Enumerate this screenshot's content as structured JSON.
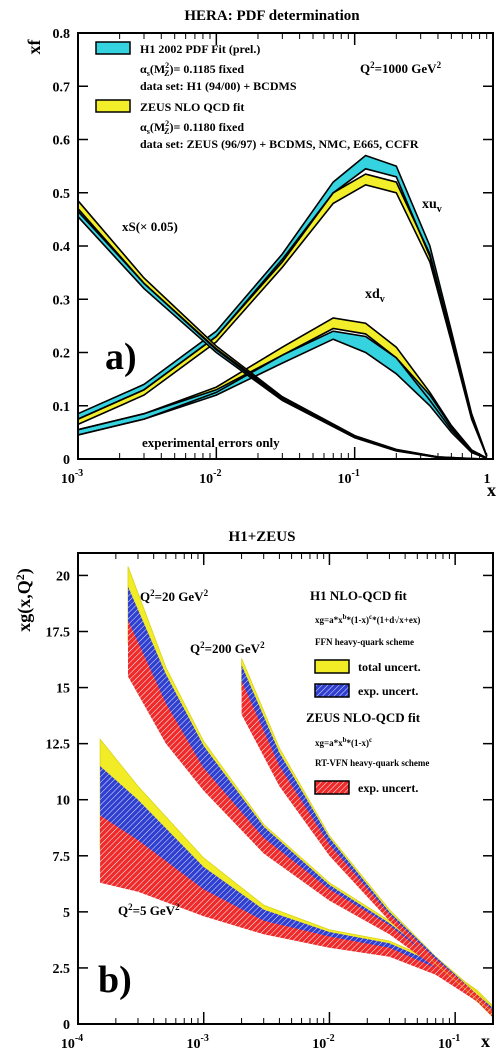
{
  "chart_data": [
    {
      "type": "line",
      "title": "HERA: PDF determination",
      "ylabel": "xf",
      "xlabel": "x",
      "xscale": "log",
      "xlim": [
        0.001,
        1
      ],
      "ylim": [
        0,
        0.8
      ],
      "x_tick_labels": [
        "10",
        "10",
        "10",
        "1"
      ],
      "x_tick_exponents": [
        "-3",
        "-2",
        "-1",
        ""
      ],
      "y_tick_labels": [
        "0",
        "0.1",
        "0.2",
        "0.3",
        "0.4",
        "0.5",
        "0.6",
        "0.7",
        "0.8"
      ],
      "panel_label": "a)",
      "q2_label": "Q",
      "q2_value": "=1000 GeV",
      "legend": {
        "h1_fit": "H1 2002 PDF Fit (prel.)",
        "h1_alpha": "= 0.1185 fixed",
        "h1_dataset": "data set: H1 (94/00) + BCDMS",
        "zeus_fit": "ZEUS NLO QCD fit",
        "zeus_alpha": "= 0.1180 fixed",
        "zeus_dataset": "data set: ZEUS (96/97) + BCDMS, NMC, E665, CCFR",
        "alpha_symbol": "α",
        "alpha_sub": "s",
        "alpha_arg": "(M",
        "alpha_arg_sub": "Z",
        "alpha_arg_sup": "2",
        "alpha_arg_close": ")"
      },
      "curve_labels": {
        "xuv": "xu",
        "xuv_sub": "v",
        "xdv": "xd",
        "xdv_sub": "v",
        "xs": "xS(× 0.05)"
      },
      "annotation": "experimental errors only",
      "colors": {
        "h1": "#35d2e0",
        "zeus": "#f3ee2a"
      },
      "series": [
        {
          "name": "xu",
          "x": [
            0.001,
            0.003,
            0.01,
            0.03,
            0.07,
            0.12,
            0.2,
            0.35,
            0.5,
            0.7,
            0.9
          ],
          "h1": [
            [
              0.075,
              0.085
            ],
            [
              0.13,
              0.14
            ],
            [
              0.23,
              0.24
            ],
            [
              0.37,
              0.385
            ],
            [
              0.5,
              0.52
            ],
            [
              0.545,
              0.57
            ],
            [
              0.53,
              0.55
            ],
            [
              0.38,
              0.4
            ],
            [
              0.23,
              0.24
            ],
            [
              0.08,
              0.085
            ],
            [
              0.005,
              0.006
            ]
          ],
          "zeus": [
            [
              0.065,
              0.075
            ],
            [
              0.12,
              0.13
            ],
            [
              0.22,
              0.23
            ],
            [
              0.36,
              0.375
            ],
            [
              0.48,
              0.5
            ],
            [
              0.515,
              0.535
            ],
            [
              0.5,
              0.52
            ],
            [
              0.37,
              0.385
            ],
            [
              0.22,
              0.23
            ],
            [
              0.075,
              0.082
            ],
            [
              0.005,
              0.006
            ]
          ]
        },
        {
          "name": "xd",
          "x": [
            0.001,
            0.003,
            0.01,
            0.03,
            0.07,
            0.12,
            0.2,
            0.35,
            0.5,
            0.7,
            0.9
          ],
          "h1": [
            [
              0.045,
              0.055
            ],
            [
              0.075,
              0.085
            ],
            [
              0.12,
              0.13
            ],
            [
              0.18,
              0.195
            ],
            [
              0.225,
              0.24
            ],
            [
              0.2,
              0.23
            ],
            [
              0.16,
              0.19
            ],
            [
              0.1,
              0.12
            ],
            [
              0.05,
              0.06
            ],
            [
              0.012,
              0.015
            ],
            [
              0.001,
              0.002
            ]
          ],
          "zeus": [
            [
              0.045,
              0.055
            ],
            [
              0.075,
              0.085
            ],
            [
              0.125,
              0.135
            ],
            [
              0.195,
              0.21
            ],
            [
              0.245,
              0.265
            ],
            [
              0.235,
              0.255
            ],
            [
              0.19,
              0.21
            ],
            [
              0.11,
              0.125
            ],
            [
              0.055,
              0.063
            ],
            [
              0.014,
              0.017
            ],
            [
              0.001,
              0.002
            ]
          ]
        },
        {
          "name": "xS",
          "x": [
            0.001,
            0.003,
            0.01,
            0.03,
            0.1,
            0.2,
            0.4,
            0.7,
            0.9
          ],
          "h1": [
            [
              0.455,
              0.47
            ],
            [
              0.32,
              0.33
            ],
            [
              0.2,
              0.207
            ],
            [
              0.11,
              0.115
            ],
            [
              0.04,
              0.043
            ],
            [
              0.015,
              0.017
            ],
            [
              0.003,
              0.004
            ],
            [
              0.0,
              0.001
            ],
            [
              0.0,
              0.0
            ]
          ],
          "zeus": [
            [
              0.465,
              0.485
            ],
            [
              0.33,
              0.34
            ],
            [
              0.205,
              0.212
            ],
            [
              0.112,
              0.117
            ],
            [
              0.041,
              0.044
            ],
            [
              0.016,
              0.018
            ],
            [
              0.003,
              0.004
            ],
            [
              0.0,
              0.001
            ],
            [
              0.0,
              0.0
            ]
          ]
        }
      ]
    },
    {
      "type": "area",
      "title": "H1+ZEUS",
      "ylabel": "xg(x,Q",
      "ylabel_sup": "2",
      "ylabel_close": ")",
      "xlabel": "x",
      "xscale": "log",
      "xlim": [
        0.0001,
        0.2
      ],
      "ylim": [
        0,
        21
      ],
      "x_tick_labels": [
        "10",
        "10",
        "10",
        "10"
      ],
      "x_tick_exponents": [
        "-4",
        "-3",
        "-2",
        "-1"
      ],
      "y_tick_labels": [
        "0",
        "2.5",
        "5",
        "7.5",
        "10",
        "12.5",
        "15",
        "17.5",
        "20"
      ],
      "panel_label": "b)",
      "q2_labels": [
        {
          "text": "Q",
          "sup": "2",
          "value": "=20 GeV",
          "unit_sup": "2"
        },
        {
          "text": "Q",
          "sup": "2",
          "value": "=200 GeV",
          "unit_sup": "2"
        },
        {
          "text": "Q",
          "sup": "2",
          "value": "=5 GeV",
          "unit_sup": "2"
        }
      ],
      "legend": {
        "h1_title": "H1 NLO-QCD fit",
        "h1_param": "xg=a*x",
        "h1_param_sup1": "b",
        "h1_param_mid": "*(1-x)",
        "h1_param_sup2": "c",
        "h1_param_end": "*(1+d√x+ex)",
        "h1_scheme": "FFN heavy-quark scheme",
        "total_uncert": "total uncert.",
        "exp_uncert": "exp.  uncert.",
        "zeus_title": "ZEUS NLO-QCD fit",
        "zeus_param": "xg=a*x",
        "zeus_param_sup1": "b",
        "zeus_param_mid": "*(1-x)",
        "zeus_param_sup2": "c",
        "zeus_scheme": "RT-VFN heavy-quark scheme",
        "zeus_exp_uncert": "exp.  uncert."
      },
      "colors": {
        "total": "#f2ec26",
        "exp_h1": "#2f3fd0",
        "exp_zeus": "#ee2a2a"
      },
      "series": [
        {
          "name": "Q2=5",
          "x": [
            0.00015,
            0.0003,
            0.001,
            0.003,
            0.01,
            0.03,
            0.07,
            0.15,
            0.2
          ],
          "total": [
            [
              7.8,
              12.7
            ],
            [
              7.0,
              10.6
            ],
            [
              5.3,
              7.4
            ],
            [
              4.2,
              5.3
            ],
            [
              3.6,
              4.2
            ],
            [
              3.1,
              3.7
            ],
            [
              2.3,
              2.8
            ],
            [
              1.0,
              1.5
            ],
            [
              0.3,
              0.8
            ]
          ],
          "exp_h1": [
            [
              8.2,
              11.5
            ],
            [
              7.3,
              10.0
            ],
            [
              5.6,
              7.0
            ],
            [
              4.4,
              5.1
            ],
            [
              3.7,
              4.1
            ],
            [
              3.2,
              3.6
            ],
            [
              2.3,
              2.7
            ],
            [
              1.0,
              1.4
            ],
            [
              0.3,
              0.7
            ]
          ],
          "exp_zeus": [
            [
              6.3,
              9.3
            ],
            [
              5.9,
              8.2
            ],
            [
              4.8,
              6.0
            ],
            [
              4.0,
              4.6
            ],
            [
              3.4,
              3.9
            ],
            [
              3.0,
              3.4
            ],
            [
              2.2,
              2.5
            ],
            [
              1.0,
              1.3
            ],
            [
              0.3,
              0.6
            ]
          ]
        },
        {
          "name": "Q2=20",
          "x": [
            0.00025,
            0.0005,
            0.001,
            0.003,
            0.01,
            0.03,
            0.07,
            0.15,
            0.2
          ],
          "total": [
            [
              17.0,
              20.4
            ],
            [
              13.6,
              15.9
            ],
            [
              11.2,
              12.6
            ],
            [
              8.1,
              8.9
            ],
            [
              5.8,
              6.3
            ],
            [
              4.2,
              4.6
            ],
            [
              2.6,
              3.0
            ],
            [
              1.1,
              1.4
            ],
            [
              0.4,
              0.7
            ]
          ],
          "exp_h1": [
            [
              17.2,
              19.5
            ],
            [
              13.8,
              15.6
            ],
            [
              11.4,
              12.4
            ],
            [
              8.2,
              8.8
            ],
            [
              5.9,
              6.2
            ],
            [
              4.2,
              4.5
            ],
            [
              2.6,
              2.9
            ],
            [
              1.1,
              1.3
            ],
            [
              0.4,
              0.6
            ]
          ],
          "exp_zeus": [
            [
              15.5,
              18.0
            ],
            [
              12.5,
              14.3
            ],
            [
              10.4,
              11.4
            ],
            [
              7.6,
              8.3
            ],
            [
              5.5,
              6.0
            ],
            [
              4.0,
              4.4
            ],
            [
              2.5,
              2.8
            ],
            [
              1.0,
              1.3
            ],
            [
              0.4,
              0.6
            ]
          ]
        },
        {
          "name": "Q2=200",
          "x": [
            0.002,
            0.004,
            0.01,
            0.03,
            0.07,
            0.15,
            0.2
          ],
          "total": [
            [
              14.9,
              16.3
            ],
            [
              11.3,
              12.3
            ],
            [
              7.8,
              8.4
            ],
            [
              4.7,
              5.1
            ],
            [
              2.7,
              3.0
            ],
            [
              1.1,
              1.4
            ],
            [
              0.5,
              0.7
            ]
          ],
          "exp_h1": [
            [
              15.0,
              16.0
            ],
            [
              11.4,
              12.1
            ],
            [
              7.9,
              8.3
            ],
            [
              4.8,
              5.0
            ],
            [
              2.8,
              3.0
            ],
            [
              1.2,
              1.3
            ],
            [
              0.5,
              0.7
            ]
          ],
          "exp_zeus": [
            [
              13.8,
              15.3
            ],
            [
              10.6,
              11.5
            ],
            [
              7.5,
              8.0
            ],
            [
              4.6,
              4.9
            ],
            [
              2.7,
              2.9
            ],
            [
              1.1,
              1.3
            ],
            [
              0.5,
              0.6
            ]
          ]
        }
      ]
    }
  ]
}
